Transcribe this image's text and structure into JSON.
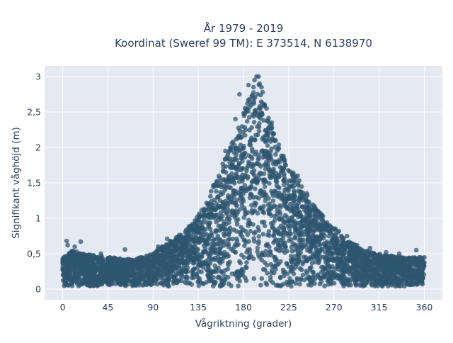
{
  "chart_data": {
    "type": "scatter",
    "title": "År 1979 - 2019",
    "subtitle": "Koordinat (Sweref 99 TM): E 373514, N 6138970",
    "xlabel": "Vågriktning (grader)",
    "ylabel": "Signifikant våghöjd (m)",
    "xlim": [
      -18,
      378
    ],
    "ylim": [
      -0.15,
      3.15
    ],
    "x_ticks": [
      0,
      45,
      90,
      135,
      180,
      225,
      270,
      315,
      360
    ],
    "x_tick_labels": [
      "0",
      "45",
      "90",
      "135",
      "180",
      "225",
      "270",
      "315",
      "360"
    ],
    "y_ticks": [
      0,
      0.5,
      1,
      1.5,
      2,
      2.5,
      3
    ],
    "y_tick_labels": [
      "0",
      "0,5",
      "1",
      "1,5",
      "2",
      "2,5",
      "3"
    ],
    "grid": true,
    "legend": "none",
    "marker_color": "#2f5570",
    "plot_background": "#e5e9f2",
    "upper_envelope": [
      {
        "x": 0,
        "y": 0.45
      },
      {
        "x": 10,
        "y": 0.55
      },
      {
        "x": 20,
        "y": 0.5
      },
      {
        "x": 45,
        "y": 0.45
      },
      {
        "x": 70,
        "y": 0.42
      },
      {
        "x": 90,
        "y": 0.5
      },
      {
        "x": 100,
        "y": 0.62
      },
      {
        "x": 115,
        "y": 0.75
      },
      {
        "x": 130,
        "y": 0.95
      },
      {
        "x": 145,
        "y": 1.3
      },
      {
        "x": 155,
        "y": 1.65
      },
      {
        "x": 165,
        "y": 1.95
      },
      {
        "x": 175,
        "y": 2.3
      },
      {
        "x": 185,
        "y": 2.7
      },
      {
        "x": 195,
        "y": 2.9
      },
      {
        "x": 205,
        "y": 2.45
      },
      {
        "x": 215,
        "y": 2.05
      },
      {
        "x": 225,
        "y": 1.75
      },
      {
        "x": 235,
        "y": 1.55
      },
      {
        "x": 245,
        "y": 1.3
      },
      {
        "x": 255,
        "y": 1.1
      },
      {
        "x": 265,
        "y": 0.95
      },
      {
        "x": 275,
        "y": 0.8
      },
      {
        "x": 285,
        "y": 0.68
      },
      {
        "x": 300,
        "y": 0.55
      },
      {
        "x": 320,
        "y": 0.48
      },
      {
        "x": 340,
        "y": 0.45
      },
      {
        "x": 360,
        "y": 0.45
      }
    ],
    "outliers": [
      {
        "x": 4,
        "y": 0.68
      },
      {
        "x": 5,
        "y": 0.62
      },
      {
        "x": 12,
        "y": 0.6
      },
      {
        "x": 18,
        "y": 0.67
      },
      {
        "x": 38,
        "y": 0.5
      },
      {
        "x": 62,
        "y": 0.56
      },
      {
        "x": 95,
        "y": 0.6
      },
      {
        "x": 104,
        "y": 0.71
      },
      {
        "x": 118,
        "y": 0.62
      },
      {
        "x": 126,
        "y": 0.83
      },
      {
        "x": 133,
        "y": 0.86
      },
      {
        "x": 162,
        "y": 1.95
      },
      {
        "x": 168,
        "y": 2.0
      },
      {
        "x": 172,
        "y": 2.4
      },
      {
        "x": 176,
        "y": 2.75
      },
      {
        "x": 182,
        "y": 2.55
      },
      {
        "x": 185,
        "y": 2.88
      },
      {
        "x": 186,
        "y": 2.68
      },
      {
        "x": 190,
        "y": 2.85
      },
      {
        "x": 191,
        "y": 2.95
      },
      {
        "x": 193,
        "y": 3.0
      },
      {
        "x": 195,
        "y": 3.0
      },
      {
        "x": 196,
        "y": 2.9
      },
      {
        "x": 198,
        "y": 2.85
      },
      {
        "x": 199,
        "y": 2.78
      },
      {
        "x": 201,
        "y": 2.6
      },
      {
        "x": 203,
        "y": 2.55
      },
      {
        "x": 208,
        "y": 2.35
      },
      {
        "x": 212,
        "y": 2.1
      },
      {
        "x": 215,
        "y": 1.98
      },
      {
        "x": 222,
        "y": 1.75
      },
      {
        "x": 234,
        "y": 1.6
      },
      {
        "x": 243,
        "y": 1.35
      },
      {
        "x": 251,
        "y": 1.15
      },
      {
        "x": 258,
        "y": 1.05
      },
      {
        "x": 275,
        "y": 0.82
      },
      {
        "x": 283,
        "y": 0.75
      },
      {
        "x": 293,
        "y": 0.62
      },
      {
        "x": 306,
        "y": 0.58
      },
      {
        "x": 322,
        "y": 0.52
      },
      {
        "x": 335,
        "y": 0.5
      },
      {
        "x": 352,
        "y": 0.55
      }
    ]
  }
}
